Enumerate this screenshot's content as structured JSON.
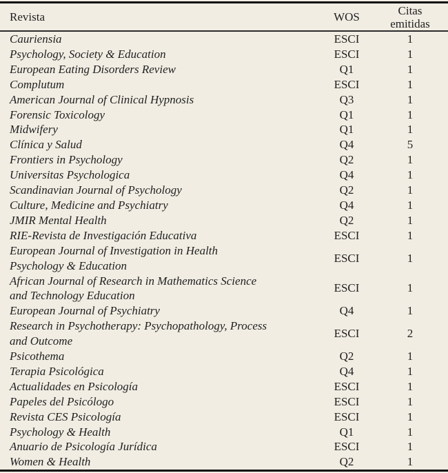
{
  "table": {
    "header": {
      "revista": "Revista",
      "wos": "WOS",
      "citas": "Citas\nemitidas"
    },
    "rows": [
      {
        "revista": "Cauriensia",
        "wos": "ESCI",
        "citas": "1"
      },
      {
        "revista": "Psychology, Society & Education",
        "wos": "ESCI",
        "citas": "1"
      },
      {
        "revista": "European Eating Disorders Review",
        "wos": "Q1",
        "citas": "1"
      },
      {
        "revista": "Complutum",
        "wos": "ESCI",
        "citas": "1"
      },
      {
        "revista": "American Journal of Clinical Hypnosis",
        "wos": "Q3",
        "citas": "1"
      },
      {
        "revista": "Forensic Toxicology",
        "wos": "Q1",
        "citas": "1"
      },
      {
        "revista": "Midwifery",
        "wos": "Q1",
        "citas": "1"
      },
      {
        "revista": "Clínica y Salud",
        "wos": "Q4",
        "citas": "5"
      },
      {
        "revista": "Frontiers in Psychology",
        "wos": "Q2",
        "citas": "1"
      },
      {
        "revista": "Universitas Psychologica",
        "wos": "Q4",
        "citas": "1"
      },
      {
        "revista": "Scandinavian Journal of Psychology",
        "wos": "Q2",
        "citas": "1"
      },
      {
        "revista": "Culture, Medicine and Psychiatry",
        "wos": "Q4",
        "citas": "1"
      },
      {
        "revista": "JMIR Mental Health",
        "wos": "Q2",
        "citas": "1"
      },
      {
        "revista": "RIE-Revista de Investigación Educativa",
        "wos": "ESCI",
        "citas": "1"
      },
      {
        "revista": "European Journal of Investigation in Health\nPsychology & Education",
        "wos": "ESCI",
        "citas": "1"
      },
      {
        "revista": "African Journal of Research in Mathematics Science\nand Technology Education",
        "wos": "ESCI",
        "citas": "1"
      },
      {
        "revista": "European Journal of Psychiatry",
        "wos": "Q4",
        "citas": "1"
      },
      {
        "revista": "Research in Psychotherapy: Psychopathology, Process\nand Outcome",
        "wos": "ESCI",
        "citas": "2"
      },
      {
        "revista": "Psicothema",
        "wos": "Q2",
        "citas": "1"
      },
      {
        "revista": "Terapia Psicológica",
        "wos": "Q4",
        "citas": "1"
      },
      {
        "revista": "Actualidades en Psicología",
        "wos": "ESCI",
        "citas": "1"
      },
      {
        "revista": "Papeles del Psicólogo",
        "wos": "ESCI",
        "citas": "1"
      },
      {
        "revista": "Revista CES Psicología",
        "wos": "ESCI",
        "citas": "1"
      },
      {
        "revista": "Psychology & Health",
        "wos": "Q1",
        "citas": "1"
      },
      {
        "revista": "Anuario de Psicología Jurídica",
        "wos": "ESCI",
        "citas": "1"
      },
      {
        "revista": "Women & Health",
        "wos": "Q2",
        "citas": "1"
      }
    ],
    "colors": {
      "background": "#f1ede3",
      "text": "#1f1f1f",
      "rule": "#0a0a0a"
    }
  }
}
